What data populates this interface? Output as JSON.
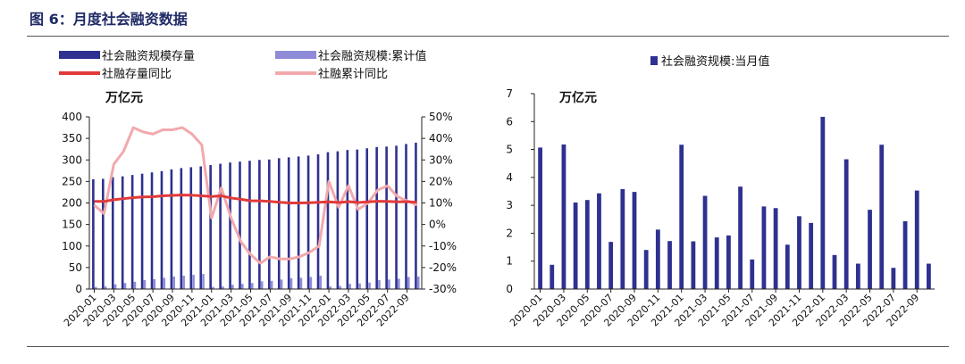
{
  "figure": {
    "title": "图 6：月度社会融资数据"
  },
  "colors": {
    "stock_bar": "#2e318f",
    "cum_bar": "#8e8cd8",
    "stock_yoy_line": "#e03a3a",
    "cum_yoy_line": "#f2a9ad",
    "monthly_bar": "#2e318f",
    "axis": "#222222"
  },
  "chart_data": [
    {
      "type": "bar",
      "title": "",
      "unit_label": "万亿元",
      "x_ticks": [
        "2020-01",
        "2020-03",
        "2020-05",
        "2020-07",
        "2020-09",
        "2020-11",
        "2021-01",
        "2021-03",
        "2021-05",
        "2021-07",
        "2021-09",
        "2021-11",
        "2022-01",
        "2022-03",
        "2022-05",
        "2022-07",
        "2022-09"
      ],
      "x_months": [
        "2020-01",
        "2020-02",
        "2020-03",
        "2020-04",
        "2020-05",
        "2020-06",
        "2020-07",
        "2020-08",
        "2020-09",
        "2020-10",
        "2020-11",
        "2020-12",
        "2021-01",
        "2021-02",
        "2021-03",
        "2021-04",
        "2021-05",
        "2021-06",
        "2021-07",
        "2021-08",
        "2021-09",
        "2021-10",
        "2021-11",
        "2021-12",
        "2022-01",
        "2022-02",
        "2022-03",
        "2022-04",
        "2022-05",
        "2022-06",
        "2022-07",
        "2022-08",
        "2022-09",
        "2022-10"
      ],
      "y_left": {
        "ylim": [
          0,
          400
        ],
        "ticks": [
          0,
          50,
          100,
          150,
          200,
          250,
          300,
          350,
          400
        ]
      },
      "y_right": {
        "ylim": [
          -30,
          50
        ],
        "ticks": [
          -30,
          -20,
          -10,
          0,
          10,
          20,
          30,
          40,
          50
        ],
        "tick_labels": [
          "-30%",
          "-20%",
          "-10%",
          "0%",
          "10%",
          "20%",
          "30%",
          "40%",
          "50%"
        ]
      },
      "legend": [
        "社会融资规模存量",
        "社会融资规模:累计值",
        "社融存量同比",
        "社融累计同比"
      ],
      "series": [
        {
          "name": "社会融资规模存量",
          "kind": "bar",
          "axis": "left",
          "values": [
            255,
            256,
            260,
            262,
            265,
            268,
            271,
            274,
            278,
            281,
            283,
            285,
            288,
            291,
            294,
            296,
            298,
            300,
            301,
            304,
            306,
            308,
            310,
            313,
            318,
            320,
            323,
            324,
            327,
            330,
            331,
            333,
            337,
            340
          ]
        },
        {
          "name": "社会融资规模:累计值",
          "kind": "bar",
          "axis": "left",
          "values": [
            5,
            6,
            11,
            14,
            17,
            21,
            23,
            26,
            29,
            31,
            33,
            35,
            5,
            6,
            10,
            12,
            14,
            18,
            19,
            22,
            25,
            26,
            28,
            31,
            6,
            7,
            12,
            13,
            15,
            21,
            22,
            24,
            28,
            29
          ]
        },
        {
          "name": "社融存量同比",
          "kind": "line",
          "axis": "right",
          "values": [
            10.7,
            10.7,
            11.5,
            12,
            12.5,
            12.8,
            12.9,
            13.3,
            13.5,
            13.7,
            13.6,
            13.3,
            13,
            13.3,
            12.3,
            11.7,
            11,
            11,
            10.7,
            10.3,
            10,
            10,
            10.1,
            10.3,
            10.5,
            10.2,
            10.6,
            10.2,
            10.5,
            10.8,
            10.7,
            10.5,
            10.6,
            10.3
          ]
        },
        {
          "name": "社融累计同比",
          "kind": "line",
          "axis": "right",
          "values": [
            9,
            5,
            28,
            34,
            45,
            43,
            42,
            44,
            44,
            45,
            42,
            37,
            3,
            17,
            3,
            -8,
            -14,
            -18,
            -15,
            -16,
            -16,
            -15,
            -13,
            -10,
            20,
            8,
            18,
            7,
            10,
            16,
            18,
            13,
            11,
            9
          ]
        }
      ]
    },
    {
      "type": "bar",
      "title": "",
      "unit_label": "万亿元",
      "x_ticks": [
        "2020-01",
        "2020-03",
        "2020-05",
        "2020-07",
        "2020-09",
        "2020-11",
        "2021-01",
        "2021-03",
        "2021-05",
        "2021-07",
        "2021-09",
        "2021-11",
        "2022-01",
        "2022-03",
        "2022-05",
        "2022-07",
        "2022-09"
      ],
      "ylim": [
        0,
        7
      ],
      "y_ticks": [
        0,
        1,
        2,
        3,
        4,
        5,
        6,
        7
      ],
      "legend": [
        "社会融资规模:当月值"
      ],
      "series": [
        {
          "name": "社会融资规模:当月值",
          "values": [
            5.07,
            0.87,
            5.18,
            3.1,
            3.19,
            3.43,
            1.69,
            3.58,
            3.48,
            1.4,
            2.13,
            1.72,
            5.17,
            1.71,
            3.34,
            1.85,
            1.92,
            3.67,
            1.06,
            2.96,
            2.9,
            1.59,
            2.61,
            2.37,
            6.17,
            1.22,
            4.65,
            0.91,
            2.84,
            5.17,
            0.76,
            2.43,
            3.53,
            0.91
          ]
        }
      ]
    }
  ]
}
